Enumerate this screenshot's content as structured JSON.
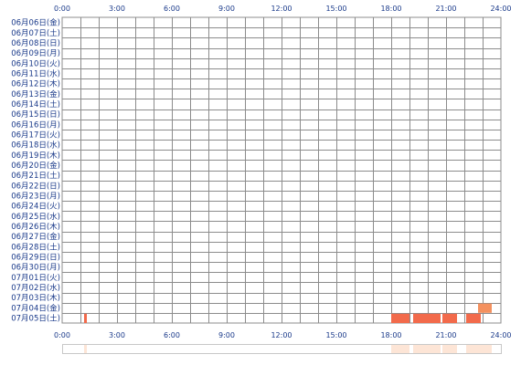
{
  "chart_data": {
    "type": "heatmap",
    "x_ticks": [
      "0:00",
      "3:00",
      "6:00",
      "9:00",
      "12:00",
      "15:00",
      "18:00",
      "21:00",
      "24:00"
    ],
    "xlim": [
      0,
      24
    ],
    "grid": true,
    "rows": [
      "06月06日(金)",
      "06月07日(土)",
      "06月08日(日)",
      "06月09日(月)",
      "06月10日(火)",
      "06月11日(水)",
      "06月12日(木)",
      "06月13日(金)",
      "06月14日(土)",
      "06月15日(日)",
      "06月16日(月)",
      "06月17日(火)",
      "06月18日(水)",
      "06月19日(木)",
      "06月20日(金)",
      "06月21日(土)",
      "06月22日(日)",
      "06月23日(月)",
      "06月24日(火)",
      "06月25日(水)",
      "06月26日(木)",
      "06月27日(金)",
      "06月28日(土)",
      "06月29日(日)",
      "06月30日(月)",
      "07月01日(火)",
      "07月02日(水)",
      "07月03日(木)",
      "07月04日(金)",
      "07月05日(土)"
    ],
    "events": [
      {
        "row": "07月04日(金)",
        "start": 22.75,
        "end": 23.5
      },
      {
        "row": "07月05日(土)",
        "start": 1.2,
        "end": 1.35
      },
      {
        "row": "07月05日(土)",
        "start": 18.0,
        "end": 19.0
      },
      {
        "row": "07月05日(土)",
        "start": 19.2,
        "end": 20.7
      },
      {
        "row": "07月05日(土)",
        "start": 20.8,
        "end": 21.6
      },
      {
        "row": "07月05日(土)",
        "start": 22.1,
        "end": 22.9
      }
    ],
    "summary_strip": [
      {
        "start": 1.2,
        "end": 1.35
      },
      {
        "start": 18.0,
        "end": 19.0
      },
      {
        "start": 19.2,
        "end": 20.7
      },
      {
        "start": 20.8,
        "end": 21.6
      },
      {
        "start": 22.1,
        "end": 23.5
      }
    ],
    "colors": {
      "bar": "#f26a4b",
      "bar_recent": "#f4915f",
      "grid": "#8c8c8c",
      "label": "#1a3a8a",
      "strip": "#fde5d6",
      "strip_border": "#c8c8c8"
    }
  }
}
